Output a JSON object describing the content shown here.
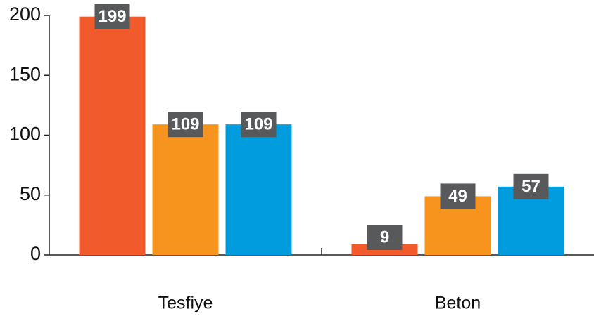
{
  "chart_data": {
    "type": "bar",
    "categories": [
      "Tesfiye",
      "Beton"
    ],
    "series": [
      {
        "color": "#f15a2b",
        "values": [
          199,
          9
        ]
      },
      {
        "color": "#f7941d",
        "values": [
          109,
          49
        ]
      },
      {
        "color": "#009cde",
        "values": [
          109,
          57
        ]
      }
    ],
    "ylim": [
      0,
      200
    ],
    "yticks": [
      0,
      50,
      100,
      150,
      200
    ],
    "grid": false,
    "data_labels": true
  }
}
